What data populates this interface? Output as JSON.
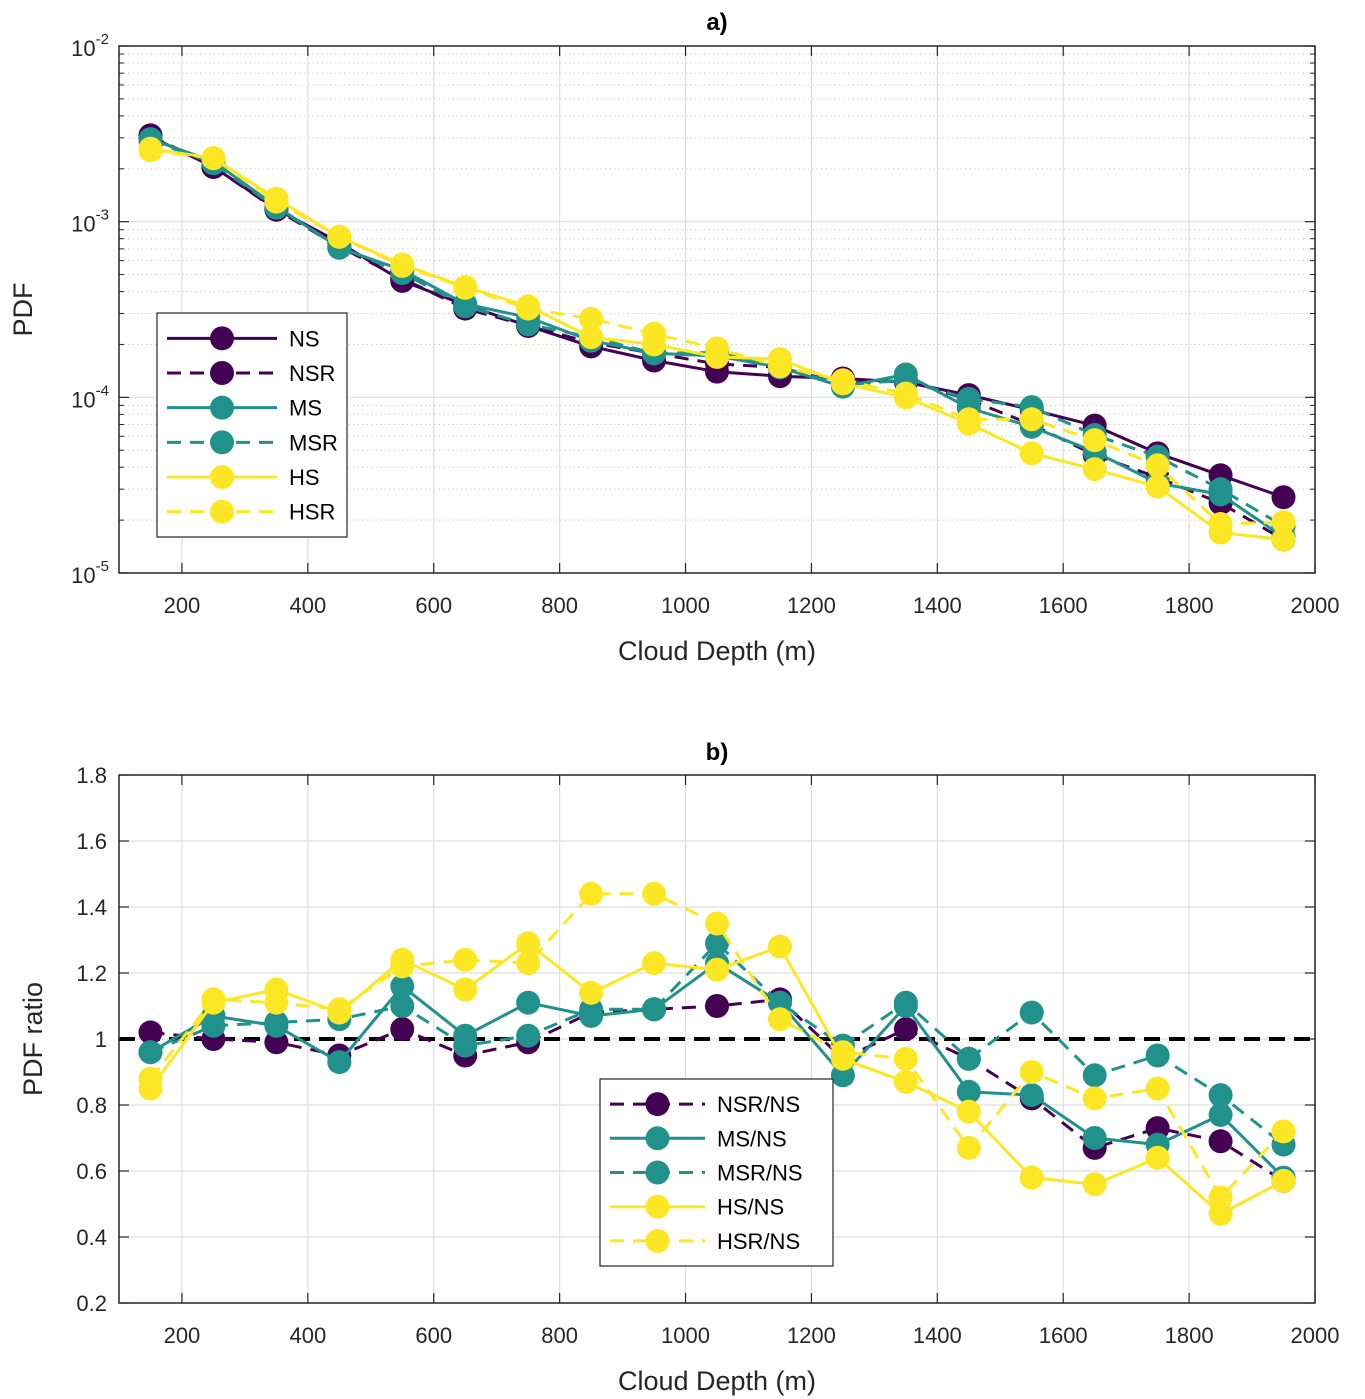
{
  "colors": {
    "NS": "#440154",
    "MS": "#21918c",
    "HS": "#fde725"
  },
  "chart_data": [
    {
      "type": "line",
      "title": "a)",
      "xlabel": "Cloud Depth (m)",
      "ylabel": "PDF",
      "xlim": [
        100,
        2000
      ],
      "ylim": [
        1e-05,
        0.01
      ],
      "yscale": "log",
      "grid": true,
      "minor_grid": true,
      "legend_position": "center-left",
      "xticks": [
        "200",
        "400",
        "600",
        "800",
        "1000",
        "1200",
        "1400",
        "1600",
        "1800",
        "2000"
      ],
      "yticks": [
        {
          "base": "10",
          "exp": "-5"
        },
        {
          "base": "10",
          "exp": "-4"
        },
        {
          "base": "10",
          "exp": "-3"
        },
        {
          "base": "10",
          "exp": "-2"
        }
      ],
      "x": [
        150,
        250,
        350,
        450,
        550,
        650,
        750,
        850,
        950,
        1050,
        1150,
        1250,
        1350,
        1450,
        1550,
        1650,
        1750,
        1850,
        1950
      ],
      "series": [
        {
          "name": "NS",
          "color": "#440154",
          "dash": false,
          "values": [
            0.00305,
            0.00205,
            0.00118,
            0.00076,
            0.00046,
            0.000335,
            0.000255,
            0.000195,
            0.000162,
            0.00014,
            0.000132,
            0.000128,
            0.000122,
            0.000103,
            8.5e-05,
            6.9e-05,
            4.8e-05,
            3.6e-05,
            2.7e-05
          ]
        },
        {
          "name": "NSR",
          "color": "#440154",
          "dash": true,
          "values": [
            0.0031,
            0.00205,
            0.00117,
            0.00072,
            0.000475,
            0.00032,
            0.000255,
            0.000205,
            0.000178,
            0.000155,
            0.000148,
            0.00012,
            0.000125,
            9.7e-05,
            7e-05,
            4.7e-05,
            3.5e-05,
            2.5e-05,
            1.55e-05
          ]
        },
        {
          "name": "MS",
          "color": "#21918c",
          "dash": false,
          "values": [
            0.00295,
            0.0022,
            0.00122,
            0.00071,
            0.00053,
            0.00034,
            0.000285,
            0.00021,
            0.000178,
            0.000172,
            0.000148,
            0.000115,
            0.000135,
            8.7e-05,
            6.8e-05,
            4.9e-05,
            3.25e-05,
            2.8e-05,
            1.6e-05
          ]
        },
        {
          "name": "MSR",
          "color": "#21918c",
          "dash": true,
          "values": [
            0.0029,
            0.00215,
            0.0012,
            0.00072,
            0.00051,
            0.00033,
            0.00026,
            0.00022,
            0.000178,
            0.00018,
            0.000148,
            0.000118,
            0.000125,
            9.8e-05,
            8.8e-05,
            6.1e-05,
            4.6e-05,
            3e-05,
            1.85e-05
          ]
        },
        {
          "name": "HS",
          "color": "#fde725",
          "dash": false,
          "values": [
            0.0026,
            0.0023,
            0.00135,
            0.00082,
            0.00057,
            0.000425,
            0.00033,
            0.00022,
            0.0002,
            0.00017,
            0.000165,
            0.00012,
            0.0001,
            7.1e-05,
            4.8e-05,
            3.9e-05,
            3.1e-05,
            1.7e-05,
            1.55e-05
          ]
        },
        {
          "name": "HSR",
          "color": "#fde725",
          "dash": true,
          "values": [
            0.00255,
            0.0023,
            0.0013,
            0.00082,
            0.00056,
            0.00042,
            0.00032,
            0.00028,
            0.00023,
            0.00019,
            0.00015,
            0.000125,
            0.000105,
            7.5e-05,
            7.5e-05,
            5.7e-05,
            4.1e-05,
            1.9e-05,
            1.95e-05
          ]
        }
      ]
    },
    {
      "type": "line",
      "title": "b)",
      "xlabel": "Cloud Depth (m)",
      "ylabel": "PDF ratio",
      "xlim": [
        100,
        2000
      ],
      "ylim": [
        0.2,
        1.8
      ],
      "grid": true,
      "reference_line": {
        "y": 1,
        "style": "dashed",
        "color": "#000000"
      },
      "legend_position": "bottom-center",
      "xticks": [
        "200",
        "400",
        "600",
        "800",
        "1000",
        "1200",
        "1400",
        "1600",
        "1800",
        "2000"
      ],
      "yticks": [
        "0.2",
        "0.4",
        "0.6",
        "0.8",
        "1",
        "1.2",
        "1.4",
        "1.6",
        "1.8"
      ],
      "x": [
        150,
        250,
        350,
        450,
        550,
        650,
        750,
        850,
        950,
        1050,
        1150,
        1250,
        1350,
        1450,
        1550,
        1650,
        1750,
        1850,
        1950
      ],
      "series": [
        {
          "name": "NSR/NS",
          "color": "#440154",
          "dash": true,
          "values": [
            1.02,
            1.0,
            0.99,
            0.95,
            1.03,
            0.95,
            0.99,
            1.08,
            1.09,
            1.1,
            1.12,
            0.94,
            1.03,
            0.94,
            0.82,
            0.67,
            0.73,
            0.69,
            0.57
          ]
        },
        {
          "name": "MS/NS",
          "color": "#21918c",
          "dash": false,
          "values": [
            0.96,
            1.07,
            1.04,
            0.93,
            1.16,
            1.01,
            1.11,
            1.07,
            1.09,
            1.23,
            1.11,
            0.89,
            1.1,
            0.84,
            0.83,
            0.7,
            0.68,
            0.77,
            0.58
          ]
        },
        {
          "name": "MSR/NS",
          "color": "#21918c",
          "dash": true,
          "values": [
            0.96,
            1.04,
            1.05,
            1.06,
            1.1,
            0.98,
            1.01,
            1.09,
            1.09,
            1.29,
            1.11,
            0.98,
            1.11,
            0.94,
            1.08,
            0.89,
            0.95,
            0.83,
            0.68
          ]
        },
        {
          "name": "HS/NS",
          "color": "#fde725",
          "dash": false,
          "values": [
            0.85,
            1.11,
            1.15,
            1.08,
            1.24,
            1.15,
            1.29,
            1.14,
            1.23,
            1.21,
            1.28,
            0.94,
            0.87,
            0.78,
            0.58,
            0.56,
            0.64,
            0.47,
            0.57
          ]
        },
        {
          "name": "HSR/NS",
          "color": "#fde725",
          "dash": true,
          "values": [
            0.88,
            1.12,
            1.11,
            1.09,
            1.22,
            1.24,
            1.23,
            1.44,
            1.44,
            1.35,
            1.06,
            0.96,
            0.94,
            0.67,
            0.9,
            0.82,
            0.85,
            0.52,
            0.72
          ]
        }
      ]
    }
  ]
}
